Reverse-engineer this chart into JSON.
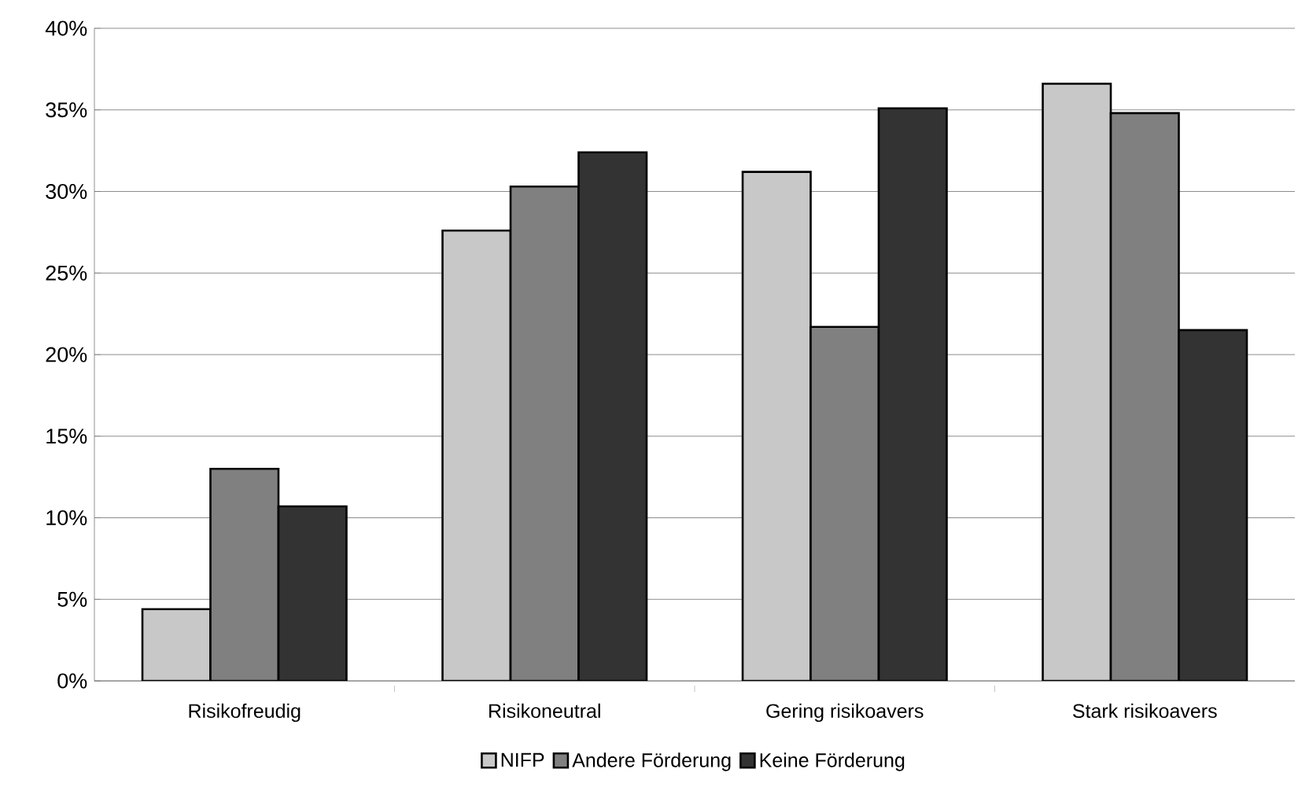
{
  "chart_data": {
    "type": "bar",
    "categories": [
      "Risikofreudig",
      "Risikoneutral",
      "Gering risikoavers",
      "Stark risikoavers"
    ],
    "series": [
      {
        "name": "NIFP",
        "color": "#c8c8c8",
        "values": [
          4.4,
          27.6,
          31.2,
          36.6
        ]
      },
      {
        "name": "Andere Förderung",
        "color": "#808080",
        "values": [
          13.0,
          30.3,
          21.7,
          34.8
        ]
      },
      {
        "name": "Keine Förderung",
        "color": "#333333",
        "values": [
          10.7,
          32.4,
          35.1,
          21.5
        ]
      }
    ],
    "ylim": [
      0,
      40
    ],
    "yticks": [
      {
        "value": 0,
        "label": "0%"
      },
      {
        "value": 5,
        "label": "5%"
      },
      {
        "value": 10,
        "label": "10%"
      },
      {
        "value": 15,
        "label": "15%"
      },
      {
        "value": 20,
        "label": "20%"
      },
      {
        "value": 25,
        "label": "25%"
      },
      {
        "value": 30,
        "label": "30%"
      },
      {
        "value": 35,
        "label": "35%"
      },
      {
        "value": 40,
        "label": "40%"
      }
    ],
    "grid": "y",
    "legend": "bottom"
  }
}
